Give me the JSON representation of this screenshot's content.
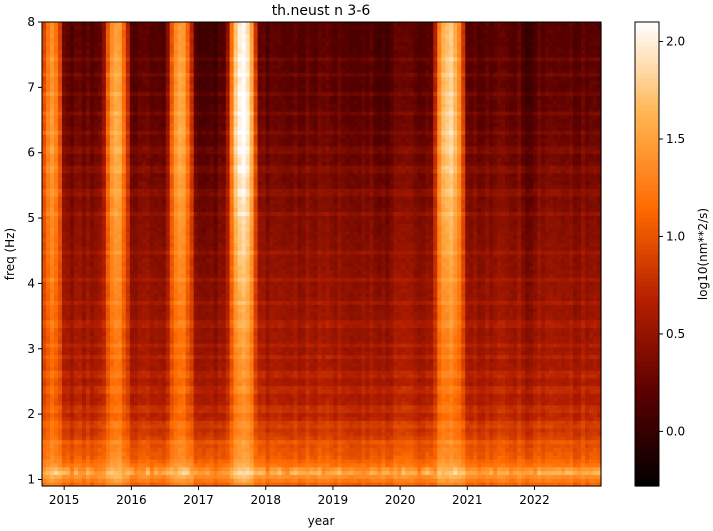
{
  "chart_data": {
    "type": "heatmap",
    "title": "th.neust n 3-6",
    "xlabel": "year",
    "ylabel": "freq (Hz)",
    "colorbar_label": "log10(nm**2/s)",
    "colormap": "gist_heat",
    "colormap_stops": [
      "#000000",
      "#5a0000",
      "#b41e00",
      "#ff6a00",
      "#ffb450",
      "#ffffff"
    ],
    "xlim": [
      2014.67,
      2022.99
    ],
    "ylim": [
      0.9,
      8.0
    ],
    "clim": [
      -0.28,
      2.1
    ],
    "x_ticks": [
      {
        "value": 2015,
        "label": "2015"
      },
      {
        "value": 2016,
        "label": "2016"
      },
      {
        "value": 2017,
        "label": "2017"
      },
      {
        "value": 2018,
        "label": "2018"
      },
      {
        "value": 2019,
        "label": "2019"
      },
      {
        "value": 2020,
        "label": "2020"
      },
      {
        "value": 2021,
        "label": "2021"
      },
      {
        "value": 2022,
        "label": "2022"
      }
    ],
    "y_ticks": [
      {
        "value": 1,
        "label": "1"
      },
      {
        "value": 2,
        "label": "2"
      },
      {
        "value": 3,
        "label": "3"
      },
      {
        "value": 4,
        "label": "4"
      },
      {
        "value": 5,
        "label": "5"
      },
      {
        "value": 6,
        "label": "6"
      },
      {
        "value": 7,
        "label": "7"
      },
      {
        "value": 8,
        "label": "8"
      }
    ],
    "colorbar_ticks": [
      {
        "value": 0.0,
        "label": "0.0"
      },
      {
        "value": 0.5,
        "label": "0.5"
      },
      {
        "value": 1.0,
        "label": "1.0"
      },
      {
        "value": 1.5,
        "label": "1.5"
      },
      {
        "value": 2.0,
        "label": "2.0"
      }
    ],
    "frequency_profile": [
      {
        "freq": 0.9,
        "value": 1.05
      },
      {
        "freq": 1.1,
        "value": 1.5
      },
      {
        "freq": 1.2,
        "value": 1.25
      },
      {
        "freq": 1.35,
        "value": 1.05
      },
      {
        "freq": 1.5,
        "value": 1.0
      },
      {
        "freq": 1.7,
        "value": 0.85
      },
      {
        "freq": 2.0,
        "value": 0.7
      },
      {
        "freq": 2.5,
        "value": 0.62
      },
      {
        "freq": 3.0,
        "value": 0.57
      },
      {
        "freq": 4.0,
        "value": 0.5
      },
      {
        "freq": 5.0,
        "value": 0.42
      },
      {
        "freq": 6.0,
        "value": 0.3
      },
      {
        "freq": 7.0,
        "value": 0.22
      },
      {
        "freq": 8.0,
        "value": 0.18
      }
    ],
    "high_noise_periods": [
      {
        "start": 2014.67,
        "end": 2014.95,
        "peak": 1.15
      },
      {
        "start": 2015.63,
        "end": 2015.93,
        "peak": 1.3
      },
      {
        "start": 2016.58,
        "end": 2016.88,
        "peak": 1.3
      },
      {
        "start": 2017.48,
        "end": 2017.83,
        "peak": 1.85
      },
      {
        "start": 2020.55,
        "end": 2020.92,
        "peak": 1.6
      }
    ],
    "quiet_periods": [
      {
        "start": 2017.0,
        "end": 2017.3
      },
      {
        "start": 2019.6,
        "end": 2019.85
      },
      {
        "start": 2021.8,
        "end": 2022.05
      }
    ],
    "spectral_lines_hz": [
      1.58,
      1.85,
      2.08,
      2.38,
      2.62,
      2.9,
      3.05,
      3.38,
      3.72,
      4.05,
      4.5,
      5.05,
      5.4,
      5.75,
      6.05,
      6.32,
      6.63,
      6.92,
      7.18,
      7.42
    ]
  }
}
